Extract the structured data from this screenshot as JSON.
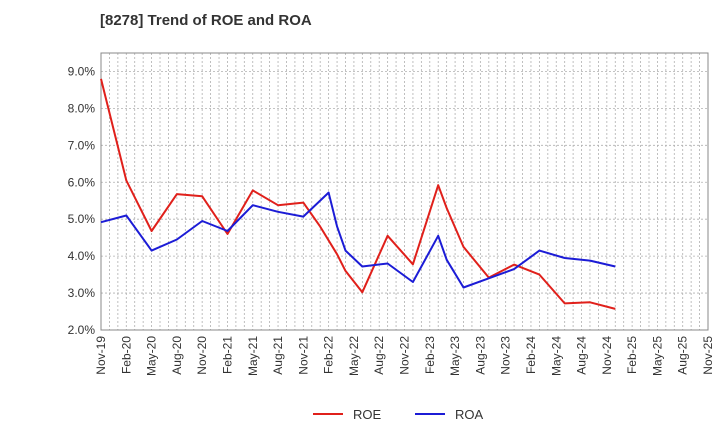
{
  "chart_data": {
    "type": "line",
    "title": "[8278]  Trend of ROE and ROA",
    "xlabel": "",
    "ylabel": "",
    "x": [
      "Nov-19",
      "Dec-19",
      "Jan-20",
      "Feb-20",
      "Mar-20",
      "Apr-20",
      "May-20",
      "Jun-20",
      "Jul-20",
      "Aug-20",
      "Sep-20",
      "Oct-20",
      "Nov-20",
      "Dec-20",
      "Jan-21",
      "Feb-21",
      "Mar-21",
      "Apr-21",
      "May-21",
      "Jun-21",
      "Jul-21",
      "Aug-21",
      "Sep-21",
      "Oct-21",
      "Nov-21",
      "Dec-21",
      "Jan-22",
      "Feb-22",
      "Mar-22",
      "Apr-22",
      "May-22",
      "Jun-22",
      "Jul-22",
      "Aug-22",
      "Sep-22",
      "Oct-22",
      "Nov-22",
      "Dec-22",
      "Jan-23",
      "Feb-23",
      "Mar-23",
      "Apr-23",
      "May-23",
      "Jun-23",
      "Jul-23",
      "Aug-23",
      "Sep-23",
      "Oct-23",
      "Nov-23",
      "Dec-23",
      "Jan-24",
      "Feb-24",
      "Mar-24",
      "Apr-24",
      "May-24",
      "Jun-24",
      "Jul-24",
      "Aug-24",
      "Sep-24",
      "Oct-24",
      "Nov-24",
      "Dec-24",
      "Jan-25",
      "Feb-25",
      "Mar-25",
      "Apr-25",
      "May-25",
      "Jun-25",
      "Jul-25",
      "Aug-25",
      "Sep-25",
      "Oct-25",
      "Nov-25"
    ],
    "tick_labels": [
      "Nov-19",
      "Feb-20",
      "May-20",
      "Aug-20",
      "Nov-20",
      "Feb-21",
      "May-21",
      "Aug-21",
      "Nov-21",
      "Feb-22",
      "May-22",
      "Aug-22",
      "Nov-22",
      "Feb-23",
      "May-23",
      "Aug-23",
      "Nov-23",
      "Feb-24",
      "May-24",
      "Aug-24",
      "Nov-24",
      "Feb-25",
      "May-25",
      "Aug-25",
      "Nov-25"
    ],
    "y_tick_labels": [
      "2.0%",
      "3.0%",
      "4.0%",
      "5.0%",
      "6.0%",
      "7.0%",
      "8.0%",
      "9.0%"
    ],
    "ylim": [
      2.0,
      9.5
    ],
    "y_ticks": [
      2.0,
      3.0,
      4.0,
      5.0,
      6.0,
      7.0,
      8.0,
      9.0
    ],
    "grid": true,
    "legend_position": "bottom",
    "series": [
      {
        "name": "ROE",
        "color": "#e0201b",
        "points": [
          [
            "Nov-19",
            8.8
          ],
          [
            "Feb-20",
            6.05
          ],
          [
            "May-20",
            4.68
          ],
          [
            "Aug-20",
            5.68
          ],
          [
            "Nov-20",
            5.62
          ],
          [
            "Feb-21",
            4.6
          ],
          [
            "May-21",
            5.78
          ],
          [
            "Aug-21",
            5.38
          ],
          [
            "Nov-21",
            5.45
          ],
          [
            "Jan-22",
            4.8
          ],
          [
            "Mar-22",
            4.05
          ],
          [
            "Apr-22",
            3.6
          ],
          [
            "Jun-22",
            3.02
          ],
          [
            "Sep-22",
            4.55
          ],
          [
            "Dec-22",
            3.78
          ],
          [
            "Mar-23",
            5.92
          ],
          [
            "Apr-23",
            5.3
          ],
          [
            "Jun-23",
            4.25
          ],
          [
            "Sep-23",
            3.42
          ],
          [
            "Dec-23",
            3.77
          ],
          [
            "Mar-24",
            3.5
          ],
          [
            "Jun-24",
            2.72
          ],
          [
            "Sep-24",
            2.75
          ],
          [
            "Dec-24",
            2.57
          ]
        ]
      },
      {
        "name": "ROA",
        "color": "#1c1cd6",
        "points": [
          [
            "Nov-19",
            4.92
          ],
          [
            "Feb-20",
            5.1
          ],
          [
            "May-20",
            4.15
          ],
          [
            "Aug-20",
            4.45
          ],
          [
            "Nov-20",
            4.95
          ],
          [
            "Feb-21",
            4.68
          ],
          [
            "May-21",
            5.38
          ],
          [
            "Aug-21",
            5.2
          ],
          [
            "Nov-21",
            5.07
          ],
          [
            "Feb-22",
            5.72
          ],
          [
            "Mar-22",
            4.8
          ],
          [
            "Apr-22",
            4.15
          ],
          [
            "Jun-22",
            3.72
          ],
          [
            "Sep-22",
            3.8
          ],
          [
            "Dec-22",
            3.3
          ],
          [
            "Mar-23",
            4.55
          ],
          [
            "Apr-23",
            3.9
          ],
          [
            "Jun-23",
            3.15
          ],
          [
            "Sep-23",
            3.4
          ],
          [
            "Dec-23",
            3.65
          ],
          [
            "Mar-24",
            4.15
          ],
          [
            "Jun-24",
            3.95
          ],
          [
            "Sep-24",
            3.88
          ],
          [
            "Dec-24",
            3.72
          ]
        ]
      }
    ]
  }
}
